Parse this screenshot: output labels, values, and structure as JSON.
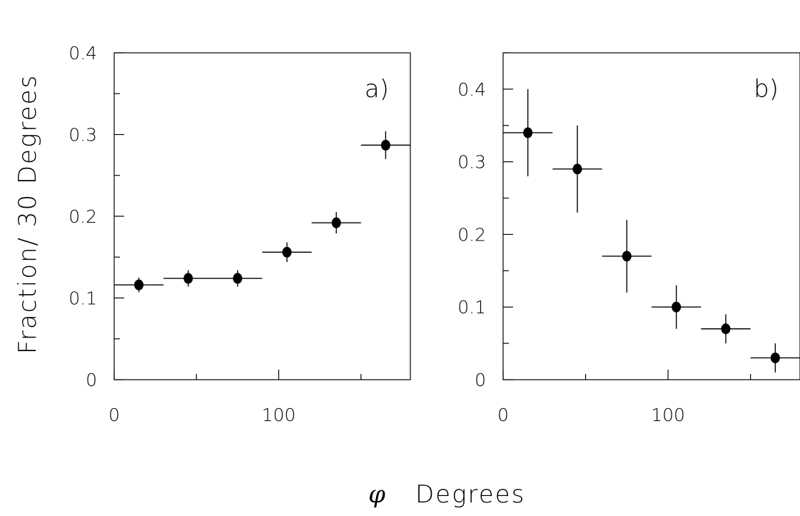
{
  "ylabel": "Fraction/ 30 Degrees",
  "xlabel_symbol": "φ",
  "xlabel_text": "Degrees",
  "chart_data": [
    {
      "type": "scatter",
      "panel_label": "a)",
      "xlim": [
        0,
        180
      ],
      "ylim": [
        0,
        0.4
      ],
      "x_ticks": [
        0,
        100
      ],
      "y_ticks": [
        0,
        0.1,
        0.2,
        0.3,
        0.4
      ],
      "x_ticklabels": [
        "0",
        "100"
      ],
      "y_ticklabels": [
        "0",
        "0.1",
        "0.2",
        "0.3",
        "0.4"
      ],
      "x_minor_step": 50,
      "y_minor_step": 0.05,
      "bin_width": 30,
      "points": [
        {
          "x": 15,
          "y": 0.116,
          "yerr": 0.009
        },
        {
          "x": 45,
          "y": 0.124,
          "yerr": 0.01
        },
        {
          "x": 75,
          "y": 0.124,
          "yerr": 0.01
        },
        {
          "x": 105,
          "y": 0.156,
          "yerr": 0.012
        },
        {
          "x": 135,
          "y": 0.192,
          "yerr": 0.013
        },
        {
          "x": 165,
          "y": 0.287,
          "yerr": 0.017
        }
      ]
    },
    {
      "type": "scatter",
      "panel_label": "b)",
      "xlim": [
        0,
        180
      ],
      "ylim": [
        0,
        0.45
      ],
      "x_ticks": [
        0,
        100
      ],
      "y_ticks": [
        0,
        0.1,
        0.2,
        0.3,
        0.4
      ],
      "x_ticklabels": [
        "0",
        "100"
      ],
      "y_ticklabels": [
        "0",
        "0.1",
        "0.2",
        "0.3",
        "0.4"
      ],
      "x_minor_step": 50,
      "y_minor_step": 0.05,
      "bin_width": 30,
      "points": [
        {
          "x": 15,
          "y": 0.34,
          "yerr": 0.06
        },
        {
          "x": 45,
          "y": 0.29,
          "yerr": 0.06
        },
        {
          "x": 75,
          "y": 0.17,
          "yerr": 0.05
        },
        {
          "x": 105,
          "y": 0.1,
          "yerr": 0.03
        },
        {
          "x": 135,
          "y": 0.07,
          "yerr": 0.02
        },
        {
          "x": 165,
          "y": 0.03,
          "yerr": 0.02
        }
      ]
    }
  ]
}
